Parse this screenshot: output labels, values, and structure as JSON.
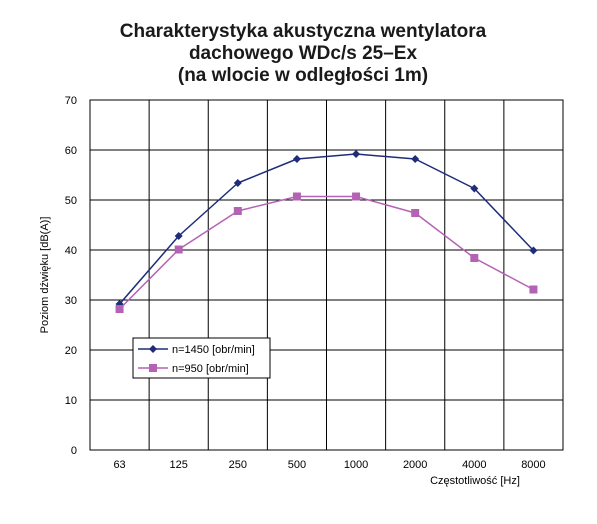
{
  "chart_data": {
    "type": "line",
    "title_lines": [
      "Charakterystyka akustyczna wentylatora",
      "dachowego WDc/s 25–Ex",
      "(na wlocie w odległości 1m)"
    ],
    "xlabel": "Częstotliwość [Hz]",
    "ylabel": "Poziom dźwięku [dB(A)]",
    "categories": [
      "63",
      "125",
      "250",
      "500",
      "1000",
      "2000",
      "4000",
      "8000"
    ],
    "ylim": [
      0,
      70
    ],
    "yticks": [
      0,
      10,
      20,
      30,
      40,
      50,
      60,
      70
    ],
    "grid": true,
    "legend_position": "left",
    "series": [
      {
        "name": "n=1450 [obr/min]",
        "marker": "diamond",
        "color": "#1f2c7a",
        "values": [
          29.2,
          42.8,
          53.4,
          58.2,
          59.2,
          58.2,
          52.3,
          39.9
        ]
      },
      {
        "name": "n=950 [obr/min]",
        "marker": "square",
        "color": "#b463b4",
        "values": [
          28.2,
          40.1,
          47.8,
          50.7,
          50.7,
          47.4,
          38.4,
          32.1
        ]
      }
    ]
  }
}
